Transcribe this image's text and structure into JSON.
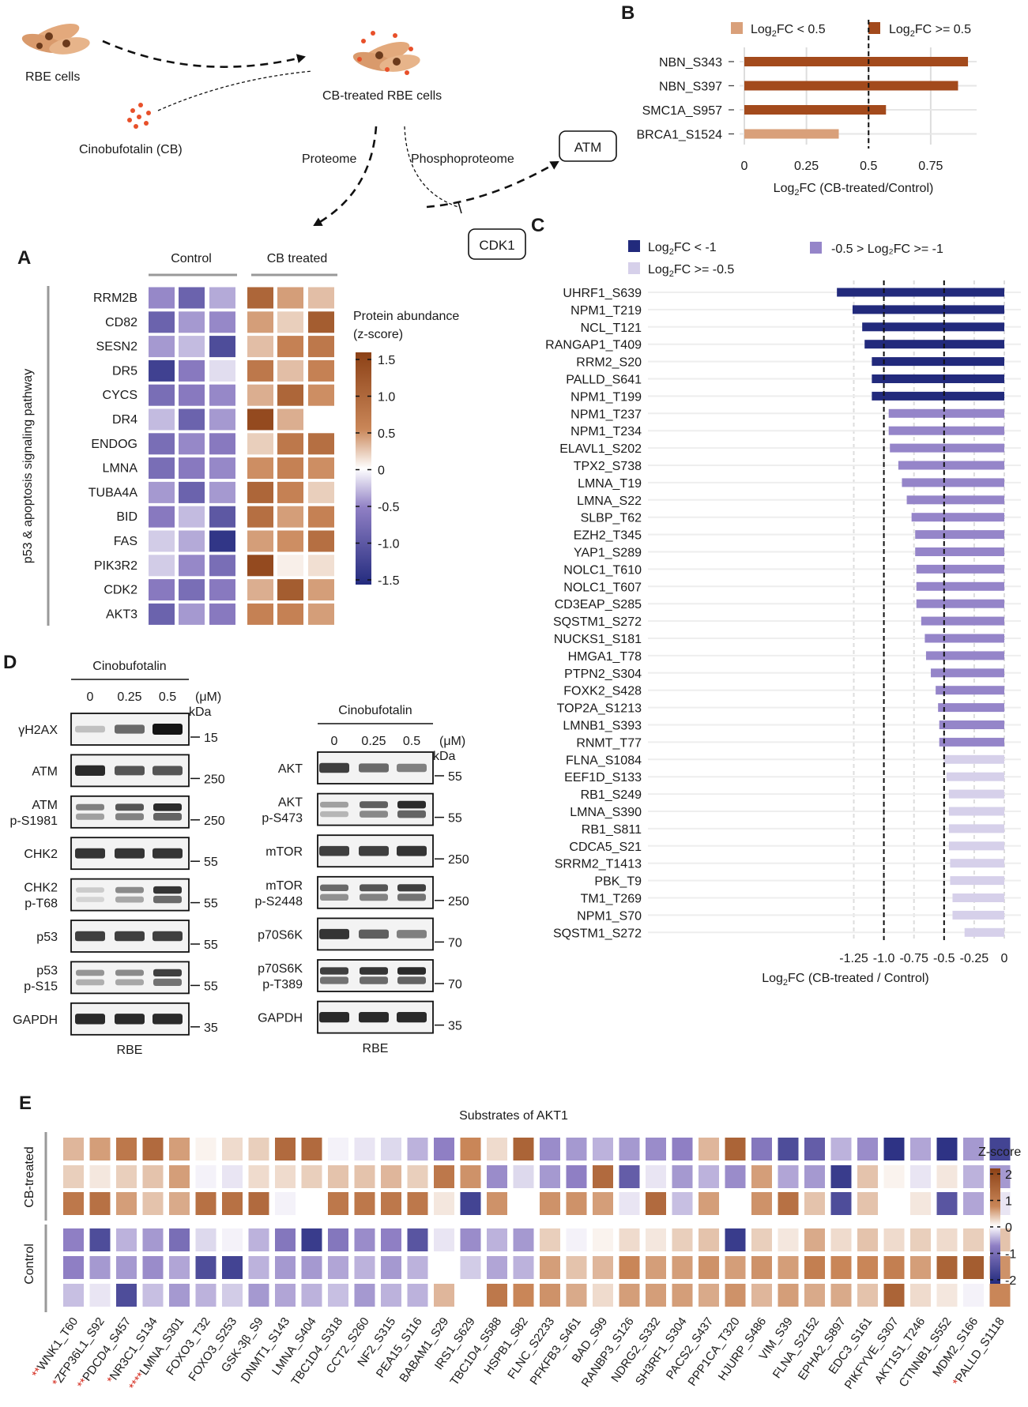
{
  "workflow": {
    "rbe_cells": "RBE cells",
    "cinobufotalin": "Cinobufotalin (CB)",
    "cb_treated": "CB-treated RBE cells",
    "proteome": "Proteome",
    "phosphoproteome": "Phosphoproteome",
    "atm": "ATM",
    "cdk1": "CDK1"
  },
  "panels": {
    "a": "A",
    "b": "B",
    "c": "C",
    "d": "D",
    "e": "E"
  },
  "colors": {
    "brown_dark": "#8c4116",
    "brown_mid": "#c98658",
    "purple_mid": "#8f7fc4",
    "navy": "#232b7e",
    "bar_high": "#a34a1c",
    "bar_low": "#d9a07a",
    "c_dark": "#222a7c",
    "c_mid": "#9585c9",
    "c_light": "#d6d0ea"
  },
  "panel_a": {
    "groups": [
      "Control",
      "CB treated"
    ],
    "side_label": "p53 & apoptosis  signaling pathway",
    "legend_title_1": "Protein abundance",
    "legend_title_2": "(z-score)",
    "legend_ticks": [
      "1.5",
      "1.0",
      "0.5",
      "0",
      "-0.5",
      "-1.0",
      "-1.5"
    ],
    "legend_range": [
      -1.5,
      1.5
    ],
    "genes": [
      "RRM2B",
      "CD82",
      "SESN2",
      "DR5",
      "CYCS",
      "DR4",
      "ENDOG",
      "LMNA",
      "TUBA4A",
      "BID",
      "FAS",
      "PIK3R2",
      "CDK2",
      "AKT3"
    ],
    "values": [
      [
        -0.7,
        -1.0,
        -0.5,
        1.1,
        0.6,
        0.4
      ],
      [
        -1.0,
        -0.6,
        -0.7,
        0.6,
        0.3,
        1.2
      ],
      [
        -0.6,
        -0.4,
        -1.2,
        0.4,
        0.8,
        0.9
      ],
      [
        -1.3,
        -0.8,
        -0.2,
        0.9,
        0.4,
        0.8
      ],
      [
        -0.9,
        -0.8,
        -0.7,
        0.5,
        1.1,
        0.7
      ],
      [
        -0.4,
        -1.0,
        -0.6,
        1.4,
        0.5,
        0.0
      ],
      [
        -0.9,
        -0.7,
        -0.8,
        0.3,
        0.9,
        1.0
      ],
      [
        -0.9,
        -0.8,
        -0.7,
        0.7,
        0.8,
        0.7
      ],
      [
        -0.6,
        -1.0,
        -0.6,
        1.1,
        0.8,
        0.3
      ],
      [
        -0.8,
        -0.4,
        -1.1,
        1.0,
        0.6,
        0.8
      ],
      [
        -0.3,
        -0.5,
        -1.4,
        0.6,
        0.7,
        1.0
      ],
      [
        -0.3,
        -0.7,
        -0.9,
        1.4,
        0.1,
        0.2
      ],
      [
        -0.8,
        -0.9,
        -0.8,
        0.5,
        1.2,
        0.6
      ],
      [
        -1.0,
        -0.6,
        -0.8,
        0.8,
        0.8,
        0.6
      ]
    ]
  },
  "panel_b": {
    "legend": [
      "FC < 0.5",
      "FC >= 0.5"
    ],
    "xlabel": "FC (CB-treated/Control)",
    "xticks": [
      "0",
      "0.25",
      "0.5",
      "0.75"
    ]
  },
  "panel_c": {
    "legend": [
      "FC < -1",
      "-0.5 > Log₂FC >= -1",
      "FC >= -0.5"
    ],
    "xlabel": "FC (CB-treated  / Control)",
    "xticks": [
      "-1.25",
      "-1.0",
      "-0.75",
      "-0.5",
      "-0.25",
      "0"
    ]
  },
  "panel_d": {
    "left": {
      "treatment": "Cinobufotalin",
      "doses": [
        "0",
        "0.25",
        "0.5"
      ],
      "unit": "(μM)",
      "kda": "kDa",
      "cell_line": "RBE",
      "blots": [
        {
          "name": [
            "γH2AX"
          ],
          "intensity": [
            0.2,
            0.6,
            1.0
          ],
          "marker": "15"
        },
        {
          "name": [
            "ATM"
          ],
          "intensity": [
            0.9,
            0.7,
            0.7
          ],
          "marker": "250"
        },
        {
          "name": [
            "ATM",
            "p-S1981"
          ],
          "intensity": [
            0.5,
            0.7,
            0.9
          ],
          "marker": "250"
        },
        {
          "name": [
            "CHK2"
          ],
          "intensity": [
            0.85,
            0.85,
            0.85
          ],
          "marker": "55"
        },
        {
          "name": [
            "CHK2",
            "p-T68"
          ],
          "intensity": [
            0.15,
            0.45,
            0.85
          ],
          "marker": "55"
        },
        {
          "name": [
            "p53"
          ],
          "intensity": [
            0.8,
            0.8,
            0.8
          ],
          "marker": "55"
        },
        {
          "name": [
            "p53",
            "p-S15"
          ],
          "intensity": [
            0.4,
            0.45,
            0.8
          ],
          "marker": "55"
        },
        {
          "name": [
            "GAPDH"
          ],
          "intensity": [
            0.9,
            0.9,
            0.9
          ],
          "marker": "35"
        }
      ]
    },
    "right": {
      "treatment": "Cinobufotalin",
      "doses": [
        "0",
        "0.25",
        "0.5"
      ],
      "unit": "(μM)",
      "kda": "kDa",
      "cell_line": "RBE",
      "blots": [
        {
          "name": [
            "AKT"
          ],
          "intensity": [
            0.8,
            0.6,
            0.5
          ],
          "marker": "55"
        },
        {
          "name": [
            "AKT",
            "p-S473"
          ],
          "intensity": [
            0.35,
            0.65,
            0.9
          ],
          "marker": "55"
        },
        {
          "name": [
            "mTOR"
          ],
          "intensity": [
            0.8,
            0.8,
            0.85
          ],
          "marker": "250"
        },
        {
          "name": [
            "mTOR",
            "p-S2448"
          ],
          "intensity": [
            0.6,
            0.7,
            0.8
          ],
          "marker": "250"
        },
        {
          "name": [
            "p70S6K"
          ],
          "intensity": [
            0.85,
            0.65,
            0.5
          ],
          "marker": "70"
        },
        {
          "name": [
            "p70S6K",
            "p-T389"
          ],
          "intensity": [
            0.8,
            0.85,
            0.9
          ],
          "marker": "70"
        },
        {
          "name": [
            "GAPDH"
          ],
          "intensity": [
            0.9,
            0.9,
            0.9
          ],
          "marker": "35"
        }
      ]
    }
  },
  "panel_e": {
    "title": "Substrates of AKT1",
    "groups": [
      "CB-treated",
      "Control"
    ],
    "legend_title": "Z-score",
    "legend_ticks": [
      "2",
      "1",
      "0",
      "-1",
      "-2"
    ],
    "legend_range": [
      -2,
      2
    ],
    "columns": [
      {
        "stars": "**",
        "label": "WNK1_T60"
      },
      {
        "stars": "*",
        "label": "ZFP36L1_S92"
      },
      {
        "stars": "**",
        "label": "PDCD4_S457"
      },
      {
        "stars": "*",
        "label": "NR3C1_S134"
      },
      {
        "stars": "****",
        "label": "LMNA_S301"
      },
      {
        "stars": "",
        "label": "FOXO3_T32"
      },
      {
        "stars": "",
        "label": "FOXO3_S253"
      },
      {
        "stars": "",
        "label": "GSK-3β_S9"
      },
      {
        "stars": "",
        "label": "DNMT1_S143"
      },
      {
        "stars": "",
        "label": "LMNA_S404"
      },
      {
        "stars": "",
        "label": "TBC1D4_S318"
      },
      {
        "stars": "",
        "label": "CCT2_S260"
      },
      {
        "stars": "",
        "label": "NF2_S315"
      },
      {
        "stars": "",
        "label": "PEA15_S116"
      },
      {
        "stars": "",
        "label": "BABAM1_S29"
      },
      {
        "stars": "",
        "label": "IRS1_S629"
      },
      {
        "stars": "",
        "label": "TBC1D4_S588"
      },
      {
        "stars": "",
        "label": "HSPB1_S82"
      },
      {
        "stars": "",
        "label": "FLNC_S2233"
      },
      {
        "stars": "",
        "label": "PFKFB3_S461"
      },
      {
        "stars": "",
        "label": "BAD_S99"
      },
      {
        "stars": "",
        "label": "RANBP3_S126"
      },
      {
        "stars": "",
        "label": "NDRG2_S332"
      },
      {
        "stars": "",
        "label": "SH3RF1_S304"
      },
      {
        "stars": "",
        "label": "PACS2_S437"
      },
      {
        "stars": "",
        "label": "PPP1CA_T320"
      },
      {
        "stars": "",
        "label": "HJURP_S486"
      },
      {
        "stars": "",
        "label": "VIM_S39"
      },
      {
        "stars": "",
        "label": "FLNA_S2152"
      },
      {
        "stars": "",
        "label": "EPHA2_S897"
      },
      {
        "stars": "",
        "label": "EDC3_S161"
      },
      {
        "stars": "",
        "label": "PIKFYVE_S307"
      },
      {
        "stars": "",
        "label": "AKT1S1_T246"
      },
      {
        "stars": "",
        "label": "CTNNB1_S552"
      },
      {
        "stars": "",
        "label": "MDM2_S166"
      },
      {
        "stars": "*",
        "label": "PALLD_S1118"
      }
    ],
    "values": [
      [
        0.6,
        0.8,
        1.2,
        1.4,
        0.8,
        0.1,
        0.3,
        0.4,
        1.4,
        1.4,
        -0.1,
        -0.2,
        -0.3,
        -0.6,
        -1.0,
        1.0,
        0.3,
        1.5,
        -0.9,
        -0.8,
        -0.6,
        -0.8,
        -0.9,
        -1.0,
        0.6,
        1.5,
        -1.1,
        -1.6,
        -1.4,
        -0.6,
        -0.9,
        -1.9,
        -0.7,
        -1.9,
        -0.8,
        -1.7
      ],
      [
        0.4,
        0.2,
        0.4,
        0.5,
        0.8,
        -0.1,
        -0.2,
        0.3,
        0.3,
        0.4,
        0.5,
        0.5,
        0.6,
        0.4,
        1.2,
        0.9,
        -0.9,
        -0.3,
        -0.8,
        -1.0,
        1.4,
        -1.4,
        -0.2,
        -0.8,
        -0.6,
        -0.9,
        0.8,
        -0.7,
        -0.8,
        -1.8,
        0.5,
        0.1,
        -0.2,
        0.2,
        -0.6,
        -0.8
      ],
      [
        1.2,
        1.3,
        0.8,
        0.5,
        0.7,
        1.3,
        1.3,
        1.4,
        -0.1,
        0.0,
        1.2,
        1.2,
        1.2,
        1.2,
        0.2,
        -1.7,
        0.9,
        0.0,
        0.9,
        0.9,
        0.8,
        -0.2,
        1.4,
        -0.5,
        0.8,
        0.0,
        0.9,
        1.3,
        0.5,
        -1.6,
        0.5,
        0.0,
        0.2,
        -1.5,
        -0.7,
        -0.2
      ],
      [
        -1.0,
        -1.6,
        -0.6,
        -0.8,
        -1.2,
        -0.3,
        -0.1,
        -0.6,
        -1.1,
        -1.8,
        -1.1,
        -0.9,
        -1.0,
        -1.5,
        -0.2,
        -0.9,
        -0.6,
        -0.8,
        0.4,
        -0.1,
        0.1,
        0.3,
        0.2,
        0.4,
        0.5,
        -1.8,
        0.4,
        0.2,
        0.7,
        0.3,
        0.5,
        0.3,
        0.4,
        0.3,
        0.4,
        0.5
      ],
      [
        -1.0,
        -0.8,
        -0.8,
        -0.9,
        -0.7,
        -1.6,
        -1.7,
        -0.6,
        -0.8,
        -0.8,
        -0.7,
        -0.6,
        -0.8,
        -0.6,
        0.0,
        -0.4,
        -0.7,
        -0.6,
        0.8,
        0.5,
        0.6,
        1.0,
        0.8,
        0.8,
        0.9,
        0.8,
        0.9,
        0.8,
        1.1,
        1.0,
        1.0,
        1.1,
        0.8,
        1.5,
        1.6,
        0.9
      ],
      [
        -0.5,
        -0.2,
        -1.6,
        -0.5,
        -0.8,
        -0.6,
        -0.4,
        -0.8,
        -0.7,
        -0.6,
        -0.5,
        -0.8,
        -0.6,
        -0.6,
        0.6,
        0.0,
        1.2,
        1.0,
        0.9,
        0.7,
        0.3,
        0.8,
        0.8,
        0.8,
        0.7,
        0.9,
        0.6,
        0.8,
        0.7,
        0.7,
        0.5,
        1.5,
        0.3,
        0.2,
        -0.1,
        1.0
      ]
    ]
  },
  "chart_data": [
    {
      "type": "bar",
      "title": "",
      "orientation": "horizontal",
      "categories": [
        "NBN_S343",
        "NBN_S397",
        "SMC1A_S957",
        "BRCA1_S1524"
      ],
      "values": [
        0.9,
        0.86,
        0.57,
        0.38
      ],
      "xlabel": "Log2FC (CB-treated/Control)",
      "ylabel": "",
      "xlim": [
        0,
        0.95
      ],
      "threshold": 0.5,
      "grid": true,
      "legend_position": "top"
    },
    {
      "type": "bar",
      "title": "",
      "orientation": "horizontal",
      "categories": [
        "UHRF1_S639",
        "NPM1_T219",
        "NCL_T121",
        "RANGAP1_T409",
        "RRM2_S20",
        "PALLD_S641",
        "NPM1_T199",
        "NPM1_T237",
        "NPM1_T234",
        "ELAVL1_S202",
        "TPX2_S738",
        "LMNA_T19",
        "LMNA_S22",
        "SLBP_T62",
        "EZH2_T345",
        "YAP1_S289",
        "NOLC1_T610",
        "NOLC1_T607",
        "CD3EAP_S285",
        "SQSTM1_S272",
        "NUCKS1_S181",
        "HMGA1_T78",
        "PTPN2_S304",
        "FOXK2_S428",
        "TOP2A_S1213",
        "LMNB1_S393",
        "RNMT_T77",
        "FLNA_S1084",
        "EEF1D_S133",
        "RB1_S249",
        "LMNA_S390",
        "RB1_S811",
        "CDCA5_S21",
        "SRRM2_T1413",
        "PBK_T9",
        "TM1_T269",
        "NPM1_S70",
        "SQSTM1_S272"
      ],
      "values": [
        -1.39,
        -1.26,
        -1.18,
        -1.16,
        -1.1,
        -1.1,
        -1.1,
        -0.96,
        -0.96,
        -0.95,
        -0.88,
        -0.85,
        -0.81,
        -0.77,
        -0.74,
        -0.74,
        -0.73,
        -0.73,
        -0.73,
        -0.69,
        -0.66,
        -0.65,
        -0.61,
        -0.57,
        -0.55,
        -0.54,
        -0.54,
        -0.5,
        -0.48,
        -0.46,
        -0.46,
        -0.46,
        -0.46,
        -0.45,
        -0.45,
        -0.43,
        -0.43,
        -0.33
      ],
      "xlabel": "Log2FC (CB-treated / Control)",
      "ylabel": "",
      "xlim": [
        -1.42,
        0.05
      ],
      "thresholds": [
        -1.0,
        -0.5
      ],
      "grid": true,
      "legend_position": "top"
    }
  ]
}
